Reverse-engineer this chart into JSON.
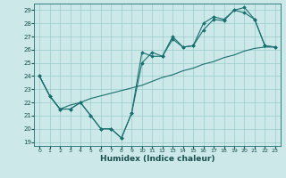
{
  "title": "",
  "xlabel": "Humidex (Indice chaleur)",
  "bg_color": "#cce8e8",
  "grid_color": "#99cccc",
  "line_color": "#1a7070",
  "xlim": [
    -0.5,
    23.5
  ],
  "ylim": [
    18.7,
    29.5
  ],
  "xticks": [
    0,
    1,
    2,
    3,
    4,
    5,
    6,
    7,
    8,
    9,
    10,
    11,
    12,
    13,
    14,
    15,
    16,
    17,
    18,
    19,
    20,
    21,
    22,
    23
  ],
  "yticks": [
    19,
    20,
    21,
    22,
    23,
    24,
    25,
    26,
    27,
    28,
    29
  ],
  "series1_x": [
    0,
    1,
    2,
    3,
    4,
    5,
    6,
    7,
    8,
    9,
    10,
    11,
    12,
    13,
    14,
    15,
    16,
    17,
    18,
    19,
    20,
    21,
    22,
    23
  ],
  "series1_y": [
    24.0,
    22.5,
    21.5,
    21.5,
    22.0,
    21.0,
    20.0,
    20.0,
    19.3,
    21.2,
    25.8,
    25.5,
    25.5,
    26.8,
    26.2,
    26.3,
    27.5,
    28.3,
    28.2,
    29.0,
    29.2,
    28.3,
    26.3,
    26.2
  ],
  "series2_x": [
    0,
    1,
    2,
    3,
    4,
    5,
    6,
    7,
    8,
    9,
    10,
    11,
    12,
    13,
    14,
    15,
    16,
    17,
    18,
    19,
    20,
    21,
    22,
    23
  ],
  "series2_y": [
    24.0,
    22.5,
    21.5,
    21.5,
    22.0,
    21.0,
    20.0,
    20.0,
    19.3,
    21.2,
    25.0,
    25.8,
    25.5,
    27.0,
    26.2,
    26.3,
    28.0,
    28.5,
    28.3,
    29.0,
    28.8,
    28.3,
    26.3,
    26.2
  ],
  "series3_x": [
    0,
    1,
    2,
    3,
    4,
    5,
    6,
    7,
    8,
    9,
    10,
    11,
    12,
    13,
    14,
    15,
    16,
    17,
    18,
    19,
    20,
    21,
    22,
    23
  ],
  "series3_y": [
    24.0,
    22.5,
    21.5,
    21.8,
    22.0,
    22.3,
    22.5,
    22.7,
    22.9,
    23.1,
    23.3,
    23.6,
    23.9,
    24.1,
    24.4,
    24.6,
    24.9,
    25.1,
    25.4,
    25.6,
    25.9,
    26.1,
    26.2,
    26.2
  ]
}
